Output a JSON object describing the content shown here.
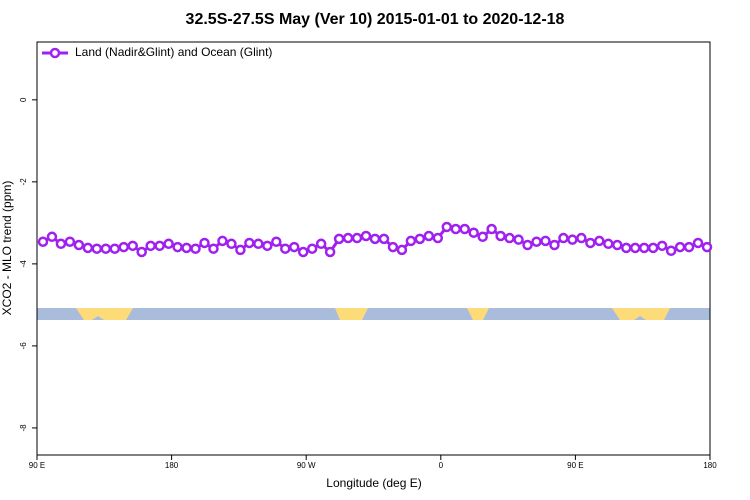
{
  "chart_data": {
    "type": "line",
    "title": "32.5S-27.5S May (Ver 10)   2015-01-01 to 2020-12-18",
    "x_label": "Longitude (deg E)",
    "y_label": "XCO2 - MLO trend (ppm)",
    "x": [
      94,
      100,
      106,
      112,
      118,
      124,
      130,
      136,
      142,
      148,
      154,
      160,
      166,
      172,
      178,
      184,
      190,
      196,
      202,
      208,
      214,
      220,
      226,
      232,
      238,
      244,
      250,
      256,
      262,
      268,
      274,
      280,
      286,
      292,
      298,
      304,
      310,
      316,
      322,
      328,
      334,
      340,
      346,
      352,
      358,
      364,
      370,
      376,
      382,
      388,
      394,
      400,
      406,
      412,
      418,
      424,
      430,
      436,
      442,
      448,
      454,
      460,
      466,
      472,
      478,
      484,
      490,
      496,
      502,
      508,
      514,
      520,
      526,
      532,
      538
    ],
    "series": [
      {
        "name": "Land (Nadir&Glint) and Ocean (Glint)",
        "color": "#a020f0",
        "values": [
          -3.46,
          -3.34,
          -3.51,
          -3.46,
          -3.54,
          -3.61,
          -3.63,
          -3.63,
          -3.63,
          -3.59,
          -3.56,
          -3.71,
          -3.56,
          -3.56,
          -3.51,
          -3.59,
          -3.61,
          -3.63,
          -3.49,
          -3.63,
          -3.44,
          -3.51,
          -3.66,
          -3.49,
          -3.51,
          -3.56,
          -3.46,
          -3.63,
          -3.59,
          -3.71,
          -3.63,
          -3.51,
          -3.71,
          -3.39,
          -3.37,
          -3.37,
          -3.32,
          -3.39,
          -3.39,
          -3.59,
          -3.66,
          -3.44,
          -3.39,
          -3.32,
          -3.37,
          -3.1,
          -3.15,
          -3.15,
          -3.24,
          -3.34,
          -3.15,
          -3.32,
          -3.37,
          -3.41,
          -3.54,
          -3.46,
          -3.44,
          -3.54,
          -3.37,
          -3.41,
          -3.37,
          -3.49,
          -3.44,
          -3.51,
          -3.54,
          -3.61,
          -3.61,
          -3.61,
          -3.61,
          -3.56,
          -3.68,
          -3.59,
          -3.59,
          -3.49,
          -3.59
        ]
      }
    ],
    "xlim": [
      90,
      540
    ],
    "ylim": [
      -8.66,
      1.41
    ],
    "xticks": [
      {
        "value": 90,
        "label": "90 E"
      },
      180,
      {
        "value": 270,
        "label": "90 W"
      },
      {
        "value": 360,
        "label": "0"
      },
      {
        "value": 450,
        "label": "90 E"
      },
      {
        "value": 540,
        "label": "180"
      }
    ],
    "yticks": [
      0,
      -2,
      -4,
      -6,
      -8
    ],
    "legend": "top-left"
  }
}
